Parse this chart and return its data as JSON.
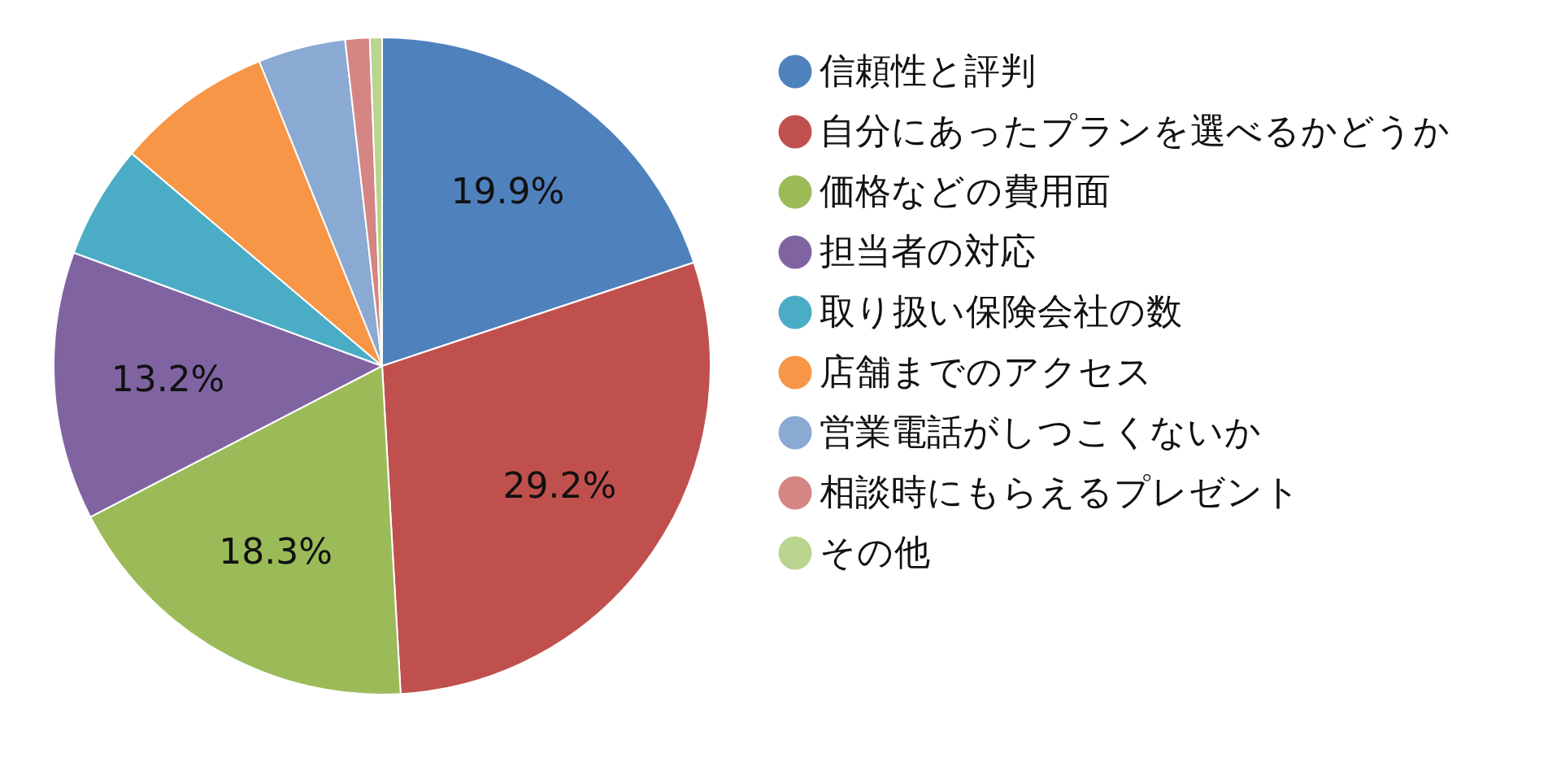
{
  "chart_data": {
    "type": "pie",
    "categories": [
      "信頼性と評判",
      "自分にあったプランを選べるかどうか",
      "価格などの費用面",
      "担当者の対応",
      "取り扱い保険会社の数",
      "店舗までのアクセス",
      "営業電話がしつこくないか",
      "相談時にもらえるプレゼント",
      "その他"
    ],
    "values": [
      19.9,
      29.2,
      18.3,
      13.2,
      5.6,
      7.7,
      4.3,
      1.2,
      0.6
    ],
    "value_labels": [
      "19.9%",
      "29.2%",
      "18.3%",
      "13.2%",
      null,
      null,
      null,
      null,
      null
    ],
    "colors": [
      "#4f81bd",
      "#c0504d",
      "#9bbb59",
      "#8064a2",
      "#4bacc6",
      "#f79646",
      "#8aaad3",
      "#d48584",
      "#b9d48f"
    ],
    "legend": "right"
  }
}
